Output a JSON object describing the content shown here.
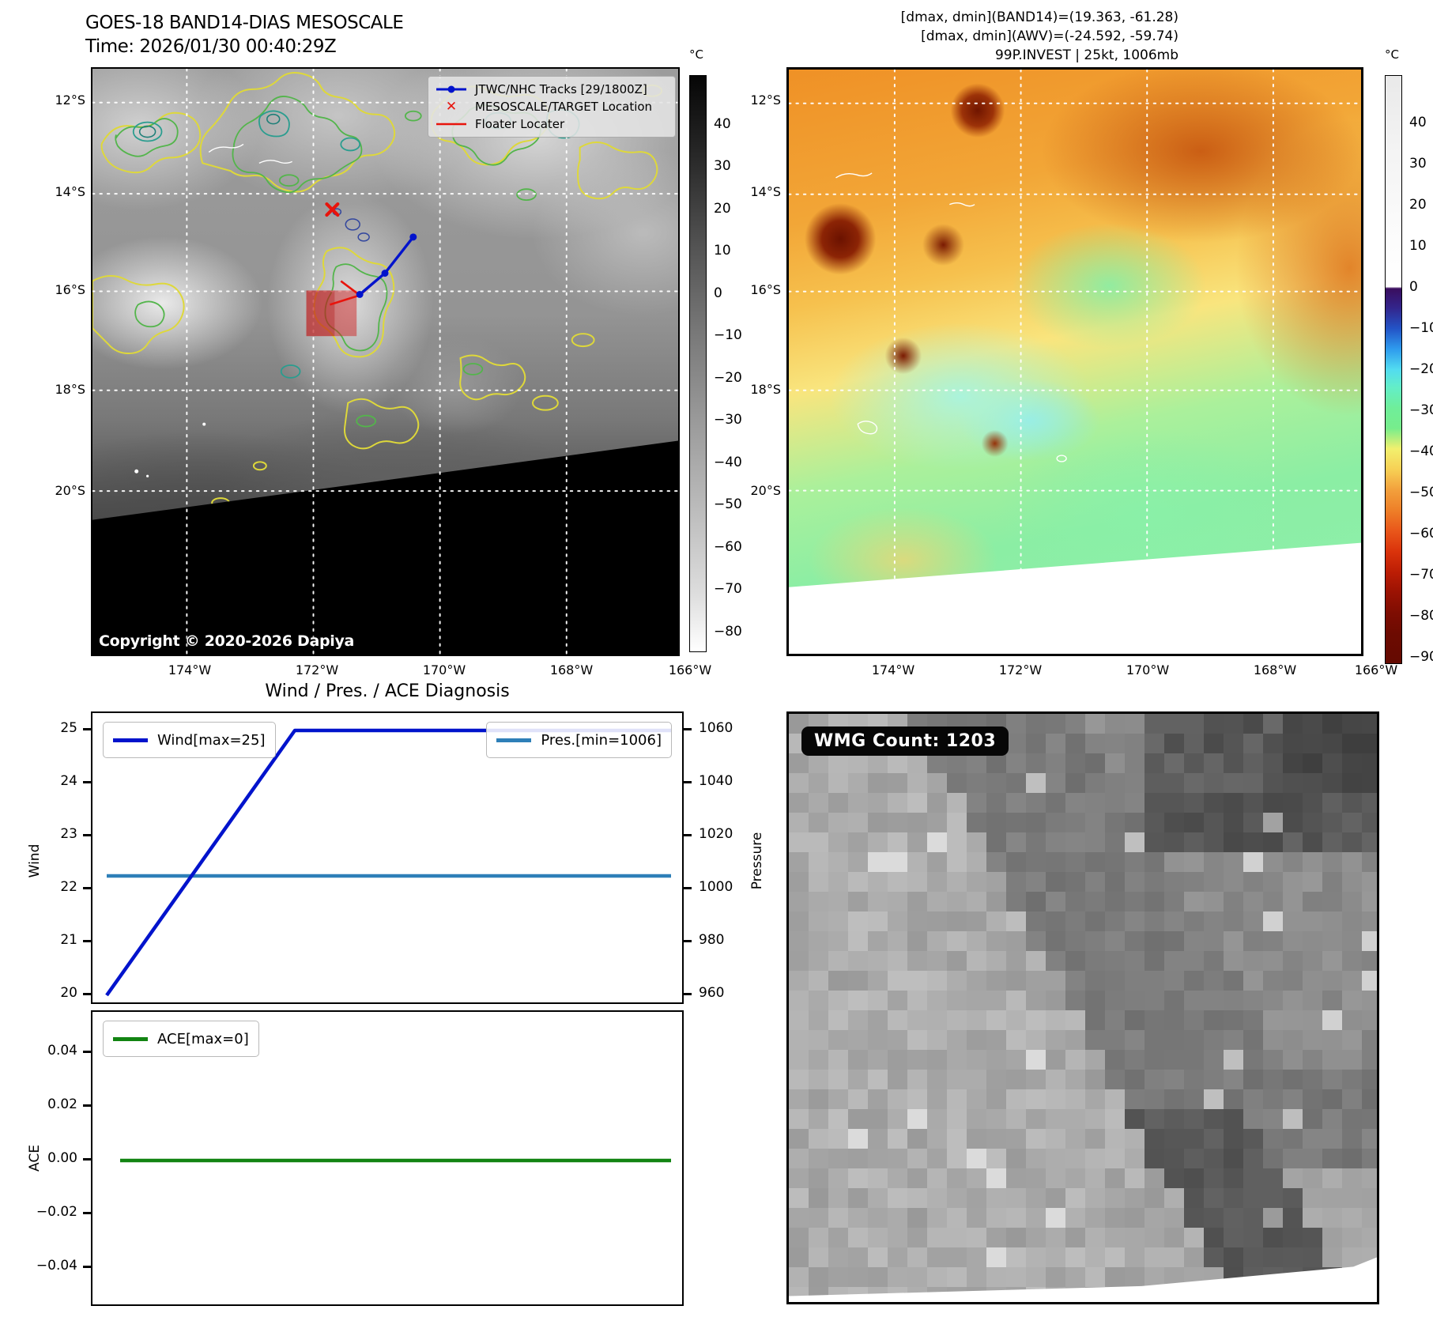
{
  "band14": {
    "title": "GOES-18 BAND14-DIAS MESOSCALE",
    "time": "Time: 2026/01/30 00:40:29Z",
    "copyright": "Copyright © 2020-2026 Dapiya",
    "legend": {
      "tracks": "JTWC/NHC Tracks [29/1800Z]",
      "target": "MESOSCALE/TARGET Location",
      "floater": "Floater Locater"
    },
    "colorbar": {
      "unit": "°C",
      "ticks": [
        "40",
        "30",
        "20",
        "10",
        "0",
        "−10",
        "−20",
        "−30",
        "−40",
        "−50",
        "−60",
        "−70",
        "−80"
      ]
    },
    "lat_ticks": [
      "12°S",
      "14°S",
      "16°S",
      "18°S",
      "20°S"
    ],
    "lon_ticks": [
      "174°W",
      "172°W",
      "170°W",
      "168°W",
      "166°W"
    ]
  },
  "awv": {
    "info_lines": [
      "[dmax, dmin](BAND14)=(19.363, -61.28)",
      "[dmax, dmin](AWV)=(-24.592, -59.74)",
      "99P.INVEST | 25kt, 1006mb"
    ],
    "colorbar": {
      "unit": "°C",
      "ticks": [
        "40",
        "30",
        "20",
        "10",
        "0",
        "−10",
        "−20",
        "−30",
        "−40",
        "−50",
        "−60",
        "−70",
        "−80",
        "−90"
      ]
    },
    "lat_ticks": [
      "12°S",
      "14°S",
      "16°S",
      "18°S",
      "20°S"
    ],
    "lon_ticks": [
      "174°W",
      "172°W",
      "170°W",
      "168°W",
      "166°W"
    ]
  },
  "diagnosis": {
    "title": "Wind / Pres. / ACE Diagnosis",
    "wind_legend": "Wind[max=25]",
    "pres_legend": "Pres.[min=1006]",
    "ace_legend": "ACE[max=0]",
    "wind_label": "Wind",
    "pres_label": "Pressure",
    "ace_label": "ACE",
    "wind_ticks": [
      "25",
      "24",
      "23",
      "22",
      "21",
      "20"
    ],
    "pres_ticks": [
      "1060",
      "1040",
      "1020",
      "1000",
      "980",
      "960"
    ],
    "ace_ticks": [
      "0.04",
      "0.02",
      "0.00",
      "−0.02",
      "−0.04"
    ]
  },
  "wmg": {
    "count_label": "WMG Count: 1203"
  },
  "colors": {
    "wind_line": "#0013cc",
    "pres_line": "#2e7fb8",
    "ace_line": "#128412",
    "track_line": "#0013cc",
    "target_marker": "#e8140c",
    "floater_line": "#e8140c",
    "contour_yellow": "#ded83a",
    "contour_green": "#53b54b",
    "contour_teal": "#2a9d8f"
  },
  "chart_data": [
    {
      "type": "line",
      "title": "Wind / Pres. / ACE Diagnosis",
      "x": [
        0,
        1,
        2,
        3
      ],
      "x_ticks_visible": false,
      "grid": false,
      "series": [
        {
          "name": "Wind[max=25]",
          "axis": "left",
          "ylabel": "Wind",
          "ylim": [
            19.75,
            25.25
          ],
          "values": [
            20,
            25,
            25,
            25
          ],
          "color": "#0013cc"
        },
        {
          "name": "Pres.[min=1006]",
          "axis": "right",
          "ylabel": "Pressure",
          "ylim": [
            952,
            1062
          ],
          "values": [
            1006,
            1006,
            1006,
            1006
          ],
          "color": "#2e7fb8"
        }
      ],
      "legend_position": [
        "upper left",
        "upper right"
      ]
    },
    {
      "type": "line",
      "title": "",
      "x": [
        0,
        1,
        2,
        3
      ],
      "x_ticks_visible": false,
      "grid": false,
      "series": [
        {
          "name": "ACE[max=0]",
          "axis": "left",
          "ylabel": "ACE",
          "ylim": [
            -0.055,
            0.055
          ],
          "values": [
            0,
            0,
            0,
            0
          ],
          "color": "#128412"
        }
      ],
      "legend_position": [
        "upper left"
      ]
    }
  ]
}
